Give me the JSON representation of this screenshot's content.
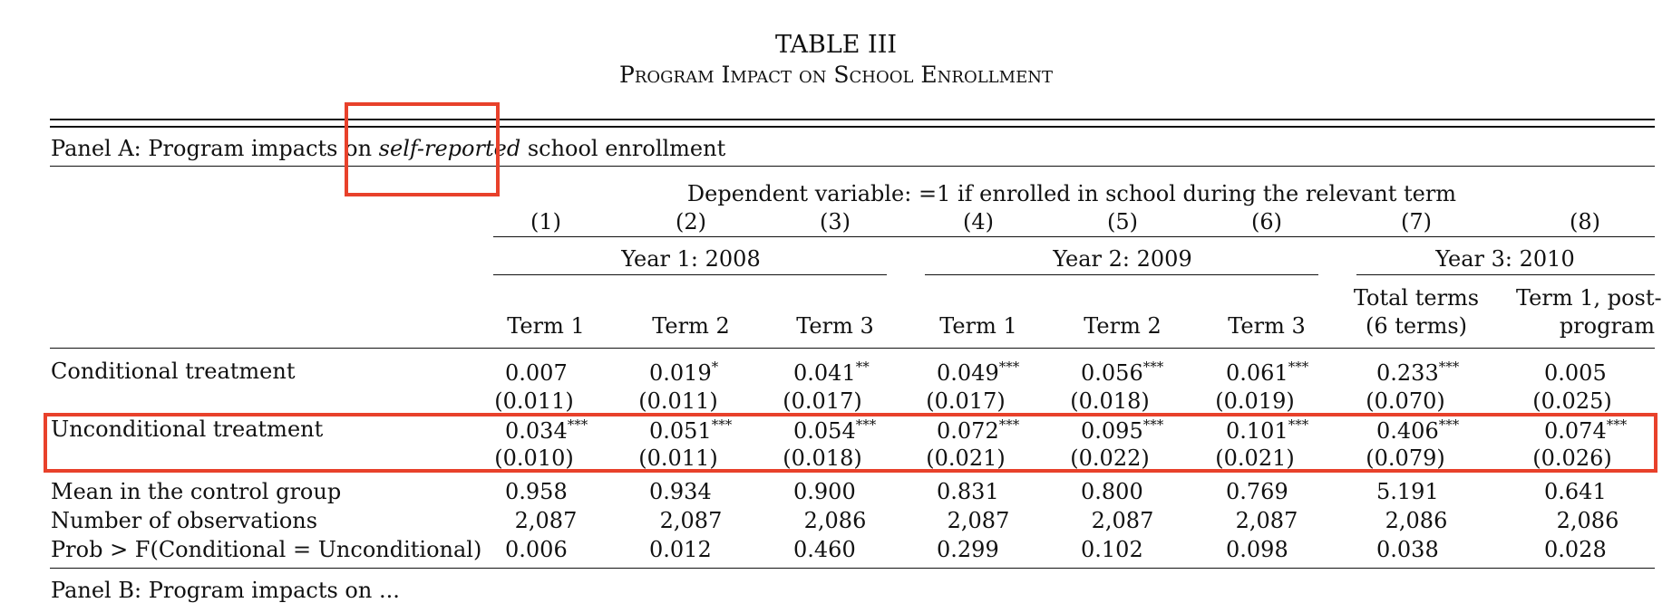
{
  "table": {
    "title": "TABLE III",
    "subtitle": "Program Impact on School Enrollment",
    "panel_a_prefix": "Panel A: Program impacts on ",
    "panel_a_italic": "self-reported",
    "panel_a_suffix": " school enrollment",
    "dependent_variable": "Dependent variable: =1 if enrolled in school during the relevant term",
    "columns": [
      "(1)",
      "(2)",
      "(3)",
      "(4)",
      "(5)",
      "(6)",
      "(7)",
      "(8)"
    ],
    "year_groups": [
      "Year 1: 2008",
      "Year 2: 2009",
      "Year 3: 2010"
    ],
    "terms": [
      "Term 1",
      "Term 2",
      "Term 3",
      "Term 1",
      "Term 2",
      "Term 3"
    ],
    "term7": [
      "Total terms",
      "(6 terms)"
    ],
    "term8": [
      "Term 1, post-",
      "program"
    ],
    "rows": [
      {
        "label": "Conditional treatment",
        "values": [
          "0.007",
          "0.019",
          "0.041",
          "0.049",
          "0.056",
          "0.061",
          "0.233",
          "0.005"
        ],
        "stars": [
          "",
          "*",
          "**",
          "***",
          "***",
          "***",
          "***",
          ""
        ],
        "se": [
          "(0.011)",
          "(0.011)",
          "(0.017)",
          "(0.017)",
          "(0.018)",
          "(0.019)",
          "(0.070)",
          "(0.025)"
        ]
      },
      {
        "label": "Unconditional treatment",
        "values": [
          "0.034",
          "0.051",
          "0.054",
          "0.072",
          "0.095",
          "0.101",
          "0.406",
          "0.074"
        ],
        "stars": [
          "***",
          "***",
          "***",
          "***",
          "***",
          "***",
          "***",
          "***"
        ],
        "se": [
          "(0.010)",
          "(0.011)",
          "(0.018)",
          "(0.021)",
          "(0.022)",
          "(0.021)",
          "(0.079)",
          "(0.026)"
        ]
      }
    ],
    "stats": [
      {
        "label": "Mean in the control group",
        "values": [
          "0.958",
          "0.934",
          "0.900",
          "0.831",
          "0.800",
          "0.769",
          "5.191",
          "0.641"
        ]
      },
      {
        "label": "Number of observations",
        "values": [
          "2,087",
          "2,087",
          "2,086",
          "2,087",
          "2,087",
          "2,087",
          "2,086",
          "2,086"
        ]
      },
      {
        "label": "Prob > F(Conditional = Unconditional)",
        "values": [
          "0.006",
          "0.012",
          "0.460",
          "0.299",
          "0.102",
          "0.098",
          "0.038",
          "0.028"
        ]
      }
    ],
    "panel_b_label": "Panel B: Program impacts on ..."
  },
  "highlight_color": "#e8412b"
}
